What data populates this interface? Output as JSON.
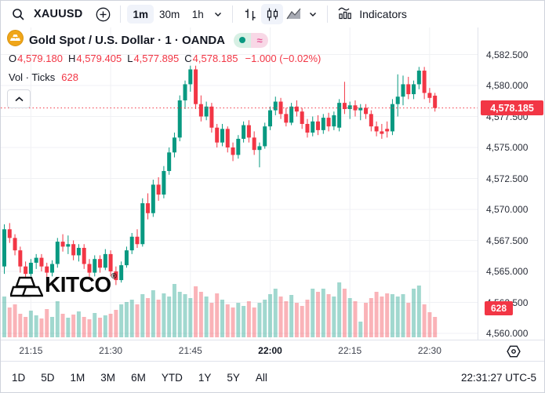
{
  "colors": {
    "up": "#089981",
    "down": "#f23645",
    "grid": "#f0f1f4",
    "accent_red": "#f23645",
    "axis_text": "#2a2e39",
    "selected_bg": "#f0f3fa",
    "gold": "#f0a619"
  },
  "topbar": {
    "symbol": "XAUUSD",
    "intervals": [
      {
        "label": "1m",
        "selected": true
      },
      {
        "label": "30m",
        "selected": false
      },
      {
        "label": "1h",
        "selected": false
      }
    ],
    "indicators_label": "Indicators"
  },
  "legend": {
    "title": "Gold Spot / U.S. Dollar · 1 · OANDA",
    "approx_symbol": "≈"
  },
  "ohlc": {
    "items": [
      {
        "k": "O",
        "v": "4,579.180"
      },
      {
        "k": "H",
        "v": "4,579.405"
      },
      {
        "k": "L",
        "v": "4,577.895"
      },
      {
        "k": "C",
        "v": "4,578.185"
      }
    ],
    "change": "−1.000 (−0.02%)"
  },
  "volume_row": {
    "label": "Vol · Ticks",
    "value": "628"
  },
  "watermark": {
    "text": "KITCO",
    "reg": "®"
  },
  "price_axis": {
    "ticks": [
      {
        "label": "4,582.500",
        "value": 4582.5
      },
      {
        "label": "4,580.000",
        "value": 4580.0
      },
      {
        "label": "4,577.500",
        "value": 4577.5
      },
      {
        "label": "4,575.000",
        "value": 4575.0
      },
      {
        "label": "4,572.500",
        "value": 4572.5
      },
      {
        "label": "4,570.000",
        "value": 4570.0
      },
      {
        "label": "4,567.500",
        "value": 4567.5
      },
      {
        "label": "4,565.000",
        "value": 4565.0
      },
      {
        "label": "4,562.500",
        "value": 4562.5
      },
      {
        "label": "4,560.000",
        "value": 4560.0
      }
    ],
    "last_price_label": "4,578.185",
    "last_price_value": 4578.185,
    "volume_badge": "628"
  },
  "time_axis": {
    "ticks": [
      {
        "label": "21:15",
        "minute": 5,
        "bold": false
      },
      {
        "label": "21:30",
        "minute": 20,
        "bold": false
      },
      {
        "label": "21:45",
        "minute": 35,
        "bold": false
      },
      {
        "label": "22:00",
        "minute": 50,
        "bold": true
      },
      {
        "label": "22:15",
        "minute": 65,
        "bold": false
      },
      {
        "label": "22:30",
        "minute": 80,
        "bold": false
      }
    ]
  },
  "bottom_bar": {
    "ranges": [
      "1D",
      "5D",
      "1M",
      "3M",
      "6M",
      "YTD",
      "1Y",
      "5Y",
      "All"
    ],
    "clock": "22:31:27 UTC-5"
  },
  "chart_data": {
    "type": "candlestick",
    "title": "Gold Spot / U.S. Dollar",
    "symbol": "XAUUSD",
    "exchange": "OANDA",
    "interval": "1m",
    "start_time": "21:10",
    "minutes_per_candle": 1,
    "visible_price_range": [
      4559.5,
      4584.7
    ],
    "last_close": 4578.185,
    "last_candle_ohlc": {
      "open": 4579.18,
      "high": 4579.405,
      "low": 4577.895,
      "close": 4578.185,
      "change": -1.0,
      "change_pct": -0.02
    },
    "current_volume_ticks": 628,
    "candles": [
      [
        4565.4,
        4568.8,
        4564.8,
        4568.4
      ],
      [
        4568.4,
        4568.9,
        4567.3,
        4567.7
      ],
      [
        4567.7,
        4568.0,
        4566.3,
        4566.7
      ],
      [
        4566.7,
        4567.0,
        4564.9,
        4565.4
      ],
      [
        4565.4,
        4565.8,
        4564.4,
        4564.8
      ],
      [
        4564.8,
        4566.0,
        4564.6,
        4565.7
      ],
      [
        4565.7,
        4566.4,
        4565.2,
        4566.1
      ],
      [
        4566.1,
        4566.4,
        4565.0,
        4565.4
      ],
      [
        4565.4,
        4565.7,
        4564.3,
        4564.9
      ],
      [
        4564.9,
        4565.9,
        4564.6,
        4565.6
      ],
      [
        4565.6,
        4567.7,
        4565.3,
        4567.4
      ],
      [
        4567.4,
        4568.0,
        4566.6,
        4567.0
      ],
      [
        4567.0,
        4567.9,
        4566.4,
        4567.2
      ],
      [
        4567.2,
        4567.5,
        4565.9,
        4566.3
      ],
      [
        4566.3,
        4567.2,
        4565.8,
        4566.9
      ],
      [
        4566.9,
        4567.2,
        4565.2,
        4565.6
      ],
      [
        4565.6,
        4566.0,
        4564.4,
        4564.9
      ],
      [
        4564.9,
        4566.3,
        4564.6,
        4566.0
      ],
      [
        4566.0,
        4566.3,
        4564.9,
        4565.3
      ],
      [
        4565.3,
        4566.8,
        4565.1,
        4566.4
      ],
      [
        4566.4,
        4566.7,
        4564.6,
        4565.0
      ],
      [
        4565.0,
        4565.4,
        4563.9,
        4564.3
      ],
      [
        4564.3,
        4565.8,
        4564.1,
        4565.5
      ],
      [
        4565.5,
        4567.0,
        4565.3,
        4566.7
      ],
      [
        4566.7,
        4568.1,
        4566.4,
        4567.8
      ],
      [
        4567.8,
        4568.4,
        4566.9,
        4567.2
      ],
      [
        4567.2,
        4570.9,
        4567.0,
        4570.5
      ],
      [
        4570.5,
        4571.3,
        4569.2,
        4569.7
      ],
      [
        4569.7,
        4572.4,
        4569.4,
        4572.0
      ],
      [
        4572.0,
        4572.6,
        4570.7,
        4571.2
      ],
      [
        4571.2,
        4573.5,
        4570.9,
        4573.1
      ],
      [
        4573.1,
        4575.0,
        4572.8,
        4574.6
      ],
      [
        4574.6,
        4576.2,
        4574.2,
        4575.8
      ],
      [
        4575.8,
        4579.2,
        4575.5,
        4578.8
      ],
      [
        4578.8,
        4580.4,
        4578.1,
        4580.1
      ],
      [
        4580.1,
        4581.6,
        4579.5,
        4581.3
      ],
      [
        4581.3,
        4581.6,
        4578.1,
        4578.5
      ],
      [
        4578.5,
        4579.2,
        4577.1,
        4577.5
      ],
      [
        4577.5,
        4578.7,
        4577.2,
        4578.3
      ],
      [
        4578.3,
        4578.6,
        4576.2,
        4576.6
      ],
      [
        4576.6,
        4576.9,
        4575.0,
        4575.4
      ],
      [
        4575.4,
        4576.9,
        4575.1,
        4576.5
      ],
      [
        4576.5,
        4576.7,
        4574.6,
        4575.0
      ],
      [
        4575.0,
        4575.4,
        4573.9,
        4574.4
      ],
      [
        4574.4,
        4576.0,
        4574.1,
        4575.7
      ],
      [
        4575.7,
        4577.1,
        4575.4,
        4576.8
      ],
      [
        4576.8,
        4577.2,
        4575.4,
        4575.8
      ],
      [
        4575.8,
        4576.3,
        4574.4,
        4574.8
      ],
      [
        4574.8,
        4575.4,
        4573.4,
        4575.1
      ],
      [
        4575.1,
        4577.0,
        4574.9,
        4576.7
      ],
      [
        4576.7,
        4578.3,
        4576.4,
        4578.0
      ],
      [
        4578.0,
        4579.1,
        4577.6,
        4578.7
      ],
      [
        4578.7,
        4579.0,
        4577.3,
        4577.7
      ],
      [
        4577.7,
        4578.2,
        4576.7,
        4577.0
      ],
      [
        4577.0,
        4578.6,
        4576.8,
        4578.3
      ],
      [
        4578.3,
        4578.8,
        4577.5,
        4577.9
      ],
      [
        4577.9,
        4578.2,
        4576.5,
        4576.9
      ],
      [
        4576.9,
        4577.3,
        4575.8,
        4576.2
      ],
      [
        4576.2,
        4577.5,
        4575.9,
        4577.1
      ],
      [
        4577.1,
        4577.6,
        4576.0,
        4576.4
      ],
      [
        4576.4,
        4577.7,
        4576.1,
        4577.4
      ],
      [
        4577.4,
        4577.8,
        4576.3,
        4576.7
      ],
      [
        4576.7,
        4577.9,
        4576.4,
        4577.6
      ],
      [
        4576.6,
        4578.9,
        4576.3,
        4578.6
      ],
      [
        4578.6,
        4580.3,
        4577.7,
        4578.1
      ],
      [
        4578.1,
        4578.7,
        4577.3,
        4578.4
      ],
      [
        4578.4,
        4578.8,
        4577.5,
        4578.0
      ],
      [
        4578.0,
        4578.5,
        4577.2,
        4578.2
      ],
      [
        4578.2,
        4578.5,
        4577.3,
        4577.7
      ],
      [
        4577.7,
        4578.0,
        4576.3,
        4576.7
      ],
      [
        4576.7,
        4577.1,
        4575.9,
        4576.3
      ],
      [
        4576.3,
        4576.9,
        4575.7,
        4576.1
      ],
      [
        4576.5,
        4577.1,
        4575.8,
        4576.3
      ],
      [
        4576.3,
        4578.9,
        4576.0,
        4578.5
      ],
      [
        4578.5,
        4580.9,
        4577.5,
        4579.1
      ],
      [
        4579.1,
        4580.8,
        4578.4,
        4580.1
      ],
      [
        4580.1,
        4580.7,
        4578.9,
        4579.3
      ],
      [
        4579.3,
        4580.4,
        4578.9,
        4580.1
      ],
      [
        4580.1,
        4581.5,
        4579.7,
        4581.2
      ],
      [
        4581.2,
        4581.5,
        4578.9,
        4579.4
      ],
      [
        4579.4,
        4579.8,
        4578.6,
        4579.0
      ],
      [
        4579.18,
        4579.405,
        4577.895,
        4578.185
      ]
    ],
    "volumes_relative": [
      52,
      38,
      42,
      30,
      26,
      34,
      28,
      24,
      36,
      26,
      46,
      30,
      25,
      29,
      33,
      26,
      23,
      31,
      25,
      28,
      30,
      35,
      42,
      45,
      48,
      42,
      55,
      50,
      60,
      48,
      56,
      52,
      68,
      58,
      55,
      50,
      65,
      58,
      52,
      44,
      56,
      48,
      42,
      38,
      44,
      40,
      46,
      38,
      44,
      48,
      55,
      62,
      52,
      46,
      54,
      44,
      40,
      48,
      62,
      58,
      62,
      55,
      52,
      70,
      62,
      50,
      46,
      20,
      44,
      50,
      58,
      52,
      56,
      55,
      52,
      55,
      44,
      62,
      66,
      42,
      32,
      26
    ]
  }
}
